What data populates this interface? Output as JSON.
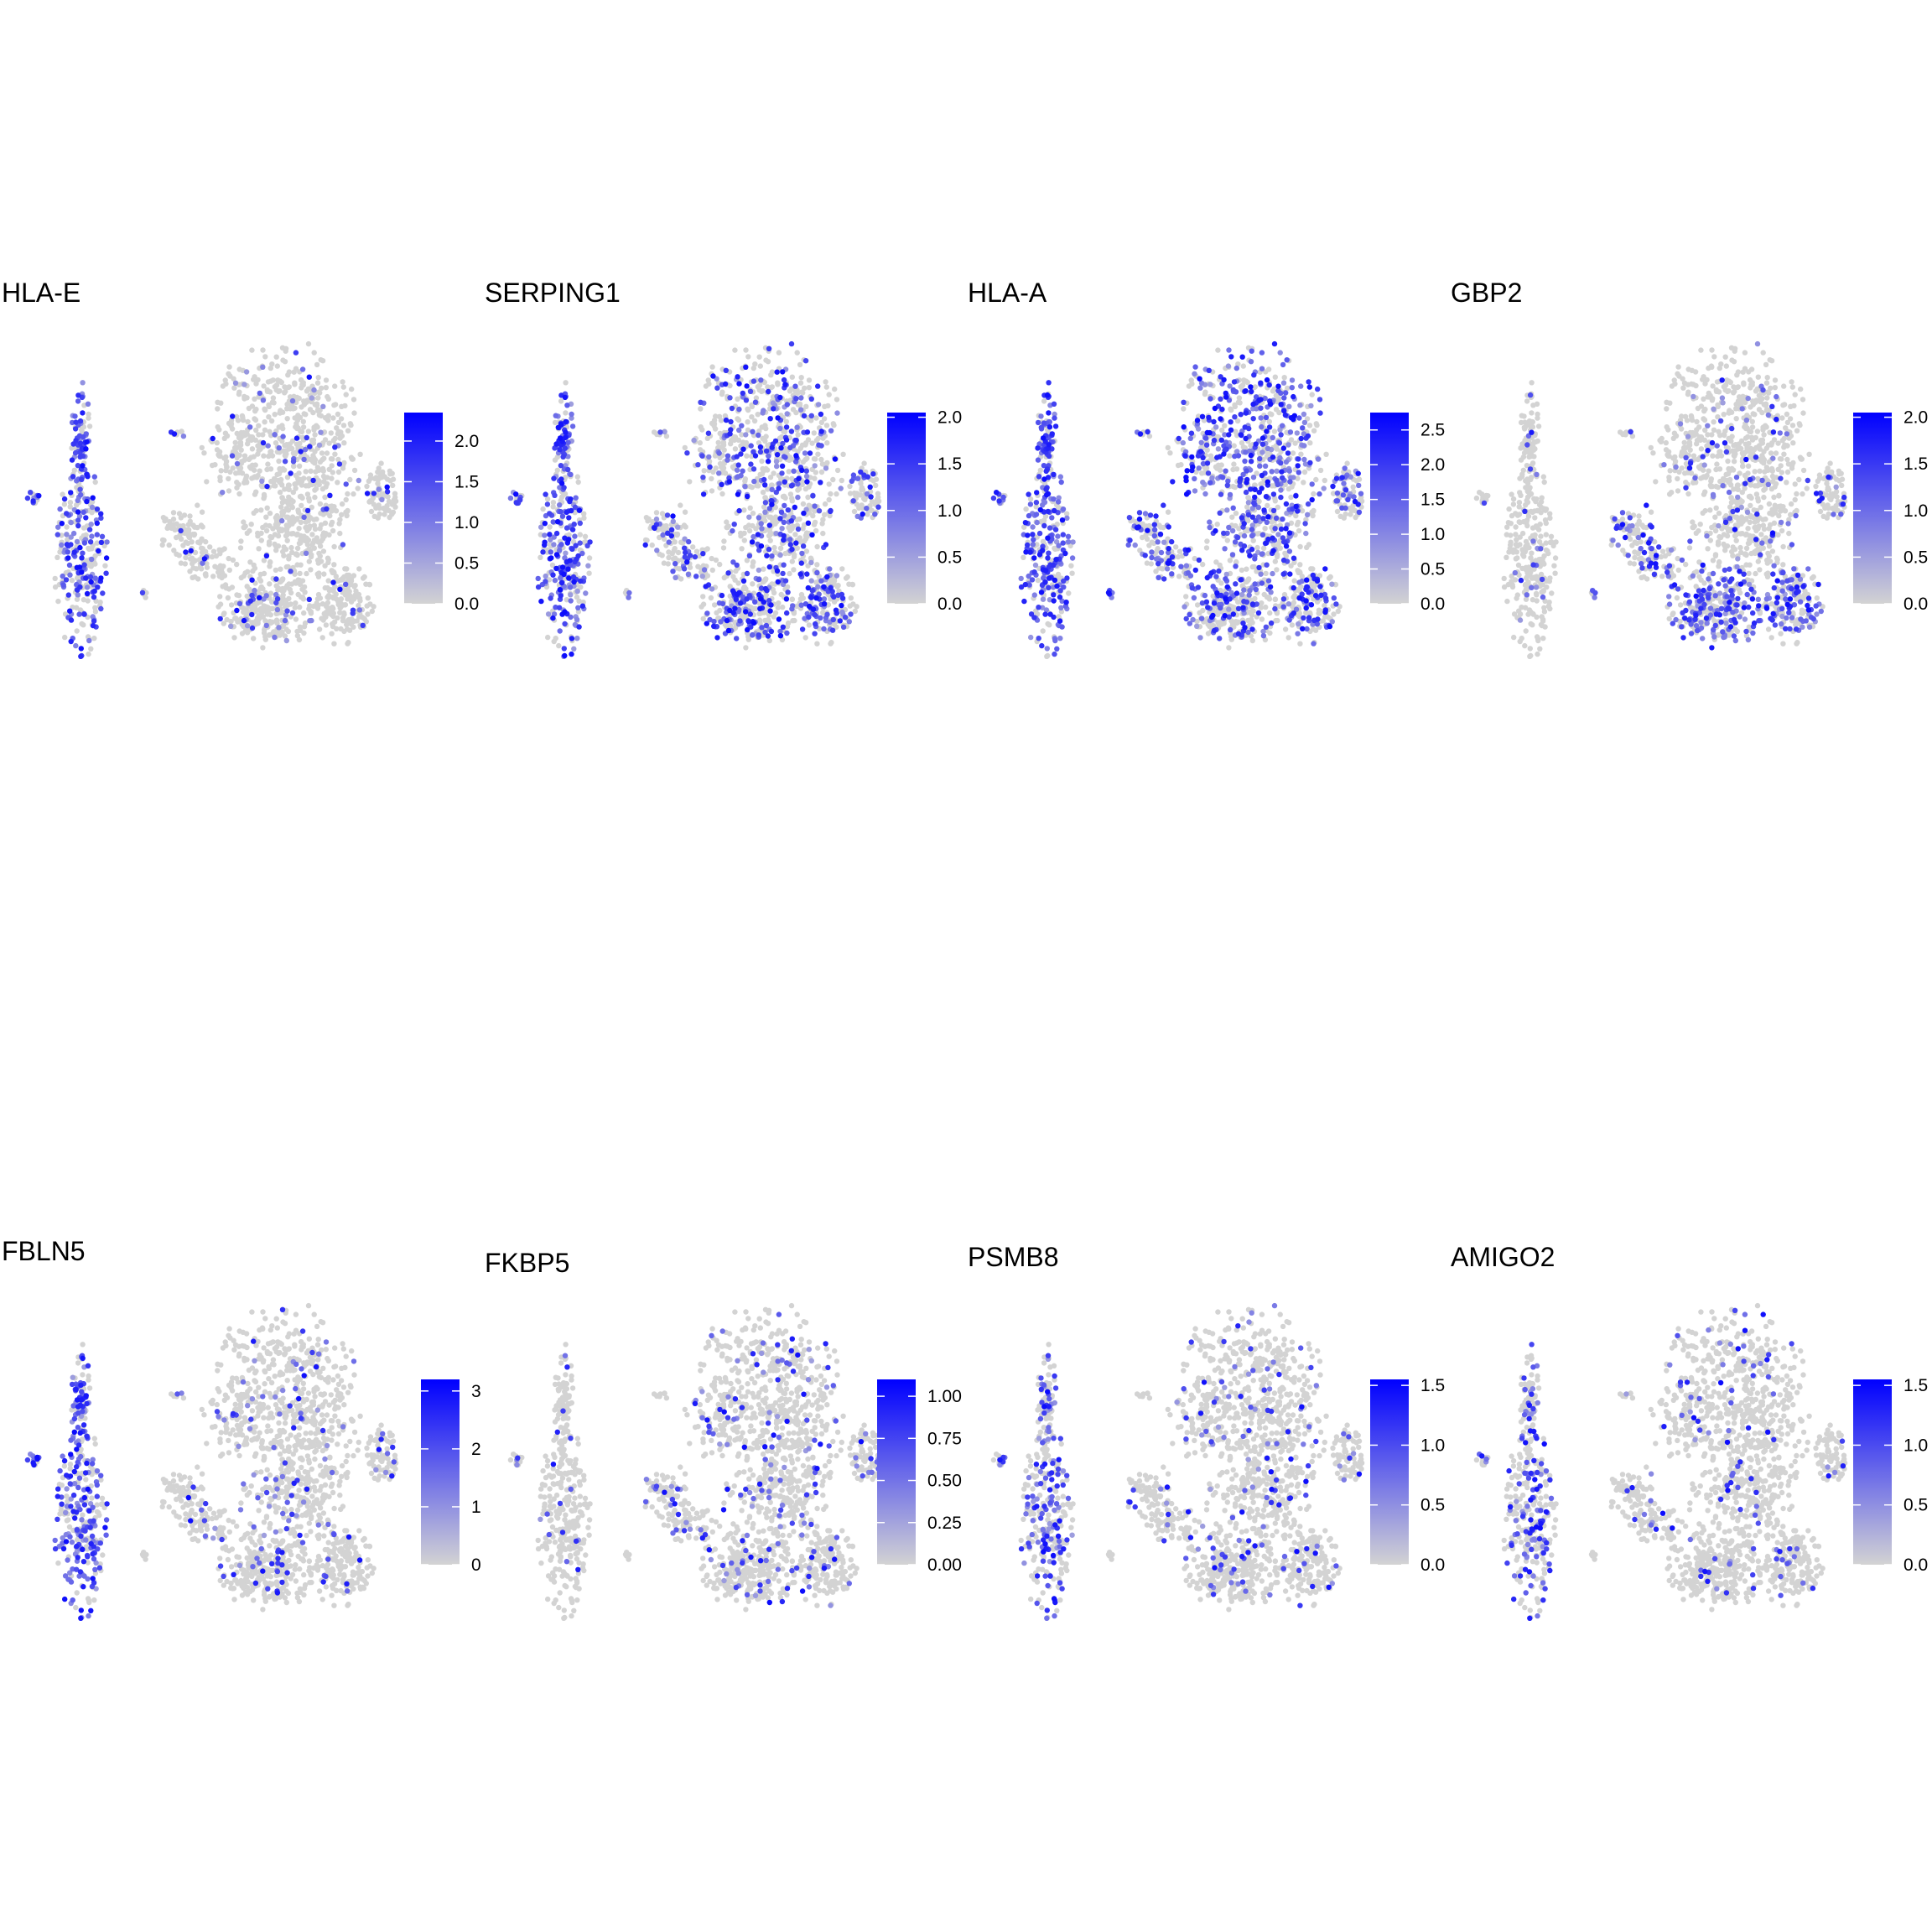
{
  "chart_data": [
    {
      "type": "scatter",
      "title": "HLA-E",
      "color_scale": {
        "low": "#d3d3d3",
        "high": "#0000ff",
        "min": 0,
        "max": 2.35,
        "ticks": [
          0,
          0.5,
          1,
          1.5,
          2
        ],
        "tick_labels": [
          "0.0",
          "0.5",
          "1.0",
          "1.5",
          "2.0"
        ]
      },
      "expression": {
        "left_cluster": 0.55,
        "island": 0.25,
        "main_top": 0.08,
        "main_mid": 0.07,
        "main_left": 0.06,
        "main_bottom": 0.1
      }
    },
    {
      "type": "scatter",
      "title": "SERPING1",
      "color_scale": {
        "low": "#d3d3d3",
        "high": "#0000ff",
        "min": 0,
        "max": 2.05,
        "ticks": [
          0,
          0.5,
          1,
          1.5,
          2
        ],
        "tick_labels": [
          "0.0",
          "0.5",
          "1.0",
          "1.5",
          "2.0"
        ]
      },
      "expression": {
        "left_cluster": 0.65,
        "island": 0.35,
        "main_top": 0.3,
        "main_mid": 0.35,
        "main_left": 0.28,
        "main_bottom": 0.45
      }
    },
    {
      "type": "scatter",
      "title": "HLA-A",
      "color_scale": {
        "low": "#d3d3d3",
        "high": "#0000ff",
        "min": 0,
        "max": 2.75,
        "ticks": [
          0,
          0.5,
          1,
          1.5,
          2,
          2.5
        ],
        "tick_labels": [
          "0.0",
          "0.5",
          "1.0",
          "1.5",
          "2.0",
          "2.5"
        ]
      },
      "expression": {
        "left_cluster": 0.65,
        "island": 0.5,
        "main_top": 0.55,
        "main_mid": 0.45,
        "main_left": 0.45,
        "main_bottom": 0.4
      }
    },
    {
      "type": "scatter",
      "title": "GBP2",
      "color_scale": {
        "low": "#d3d3d3",
        "high": "#0000ff",
        "min": 0,
        "max": 2.05,
        "ticks": [
          0,
          0.5,
          1,
          1.5,
          2
        ],
        "tick_labels": [
          "0.0",
          "0.5",
          "1.0",
          "1.5",
          "2.0"
        ]
      },
      "expression": {
        "left_cluster": 0.05,
        "island": 0.3,
        "main_top": 0.1,
        "main_mid": 0.15,
        "main_left": 0.35,
        "main_bottom": 0.5
      }
    },
    {
      "type": "scatter",
      "title": "FBLN5",
      "color_scale": {
        "low": "#d3d3d3",
        "high": "#0000ff",
        "min": 0,
        "max": 3.2,
        "ticks": [
          0,
          1,
          2,
          3
        ],
        "tick_labels": [
          "0",
          "1",
          "2",
          "3"
        ]
      },
      "expression": {
        "left_cluster": 0.6,
        "island": 0.1,
        "main_top": 0.08,
        "main_mid": 0.1,
        "main_left": 0.08,
        "main_bottom": 0.08
      }
    },
    {
      "type": "scatter",
      "title": "FKBP5",
      "color_scale": {
        "low": "#d3d3d3",
        "high": "#0000ff",
        "min": 0,
        "max": 1.1,
        "ticks": [
          0,
          0.25,
          0.5,
          0.75,
          1
        ],
        "tick_labels": [
          "0.00",
          "0.25",
          "0.50",
          "0.75",
          "1.00"
        ]
      },
      "expression": {
        "left_cluster": 0.08,
        "island": 0.05,
        "main_top": 0.1,
        "main_mid": 0.12,
        "main_left": 0.15,
        "main_bottom": 0.12
      }
    },
    {
      "type": "scatter",
      "title": "PSMB8",
      "color_scale": {
        "low": "#d3d3d3",
        "high": "#0000ff",
        "min": 0,
        "max": 1.55,
        "ticks": [
          0,
          0.5,
          1,
          1.5
        ],
        "tick_labels": [
          "0.0",
          "0.5",
          "1.0",
          "1.5"
        ]
      },
      "expression": {
        "left_cluster": 0.35,
        "island": 0.05,
        "main_top": 0.1,
        "main_mid": 0.08,
        "main_left": 0.08,
        "main_bottom": 0.08
      }
    },
    {
      "type": "scatter",
      "title": "AMIGO2",
      "color_scale": {
        "low": "#d3d3d3",
        "high": "#0000ff",
        "min": 0,
        "max": 1.55,
        "ticks": [
          0,
          0.5,
          1,
          1.5
        ],
        "tick_labels": [
          "0.0",
          "0.5",
          "1.0",
          "1.5"
        ]
      },
      "expression": {
        "left_cluster": 0.3,
        "island": 0.05,
        "main_top": 0.08,
        "main_mid": 0.06,
        "main_left": 0.08,
        "main_bottom": 0.06
      }
    }
  ]
}
